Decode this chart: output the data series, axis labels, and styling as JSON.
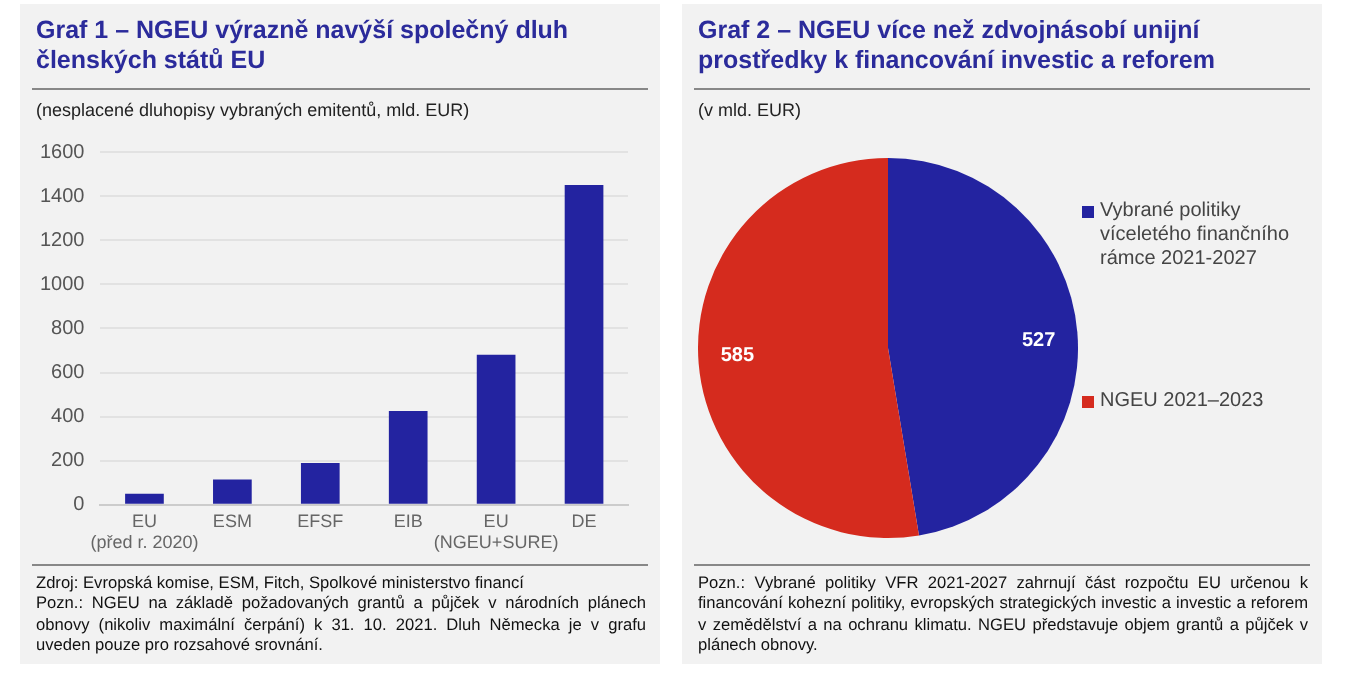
{
  "chart_data": [
    {
      "type": "bar",
      "title": "Graf 1 – NGEU výrazně navýší společný dluh členských států EU",
      "subtitle": "(nesplacené dluhopisy vybraných emitentů, mld. EUR)",
      "categories": [
        "EU\n(před r. 2020)",
        "ESM",
        "EFSF",
        "EIB",
        "EU\n(NGEU+SURE)",
        "DE"
      ],
      "values": [
        50,
        115,
        190,
        425,
        680,
        1450
      ],
      "color": "#2323a0",
      "ylim": [
        0,
        1600
      ],
      "yticks": [
        0,
        200,
        400,
        600,
        800,
        1000,
        1200,
        1400,
        1600
      ],
      "grid": "y",
      "legend": false,
      "annotations": [
        "Zdroj: Evropská komise, ESM, Fitch, Spolkové ministerstvo financí",
        "Pozn.: NGEU na základě požadovaných grantů a půjček v národních plánech obnovy (nikoliv maximální čerpání) k 31. 10. 2021.  Dluh Německa je v grafu uveden pouze pro rozsahové srovnání."
      ]
    },
    {
      "type": "pie",
      "title": "Graf 2 – NGEU více než zdvojnásobí unijní prostředky k financování investic a reforem",
      "subtitle": "(v mld. EUR)",
      "categories": [
        "Vybrané politiky víceletého finančního rámce 2021-2027",
        "NGEU 2021–2023"
      ],
      "values": [
        527,
        585
      ],
      "colors": [
        "#2323a0",
        "#d52b1e"
      ],
      "data_labels": true,
      "legend": "right",
      "annotations": [
        "Pozn.: Vybrané politiky VFR 2021-2027 zahrnují část rozpočtu EU určenou k financování kohezní politiky, evropských strategických investic a investic a reforem v zemědělství a na ochranu klimatu. NGEU představuje objem grantů a půjček v plánech obnovy."
      ]
    }
  ]
}
